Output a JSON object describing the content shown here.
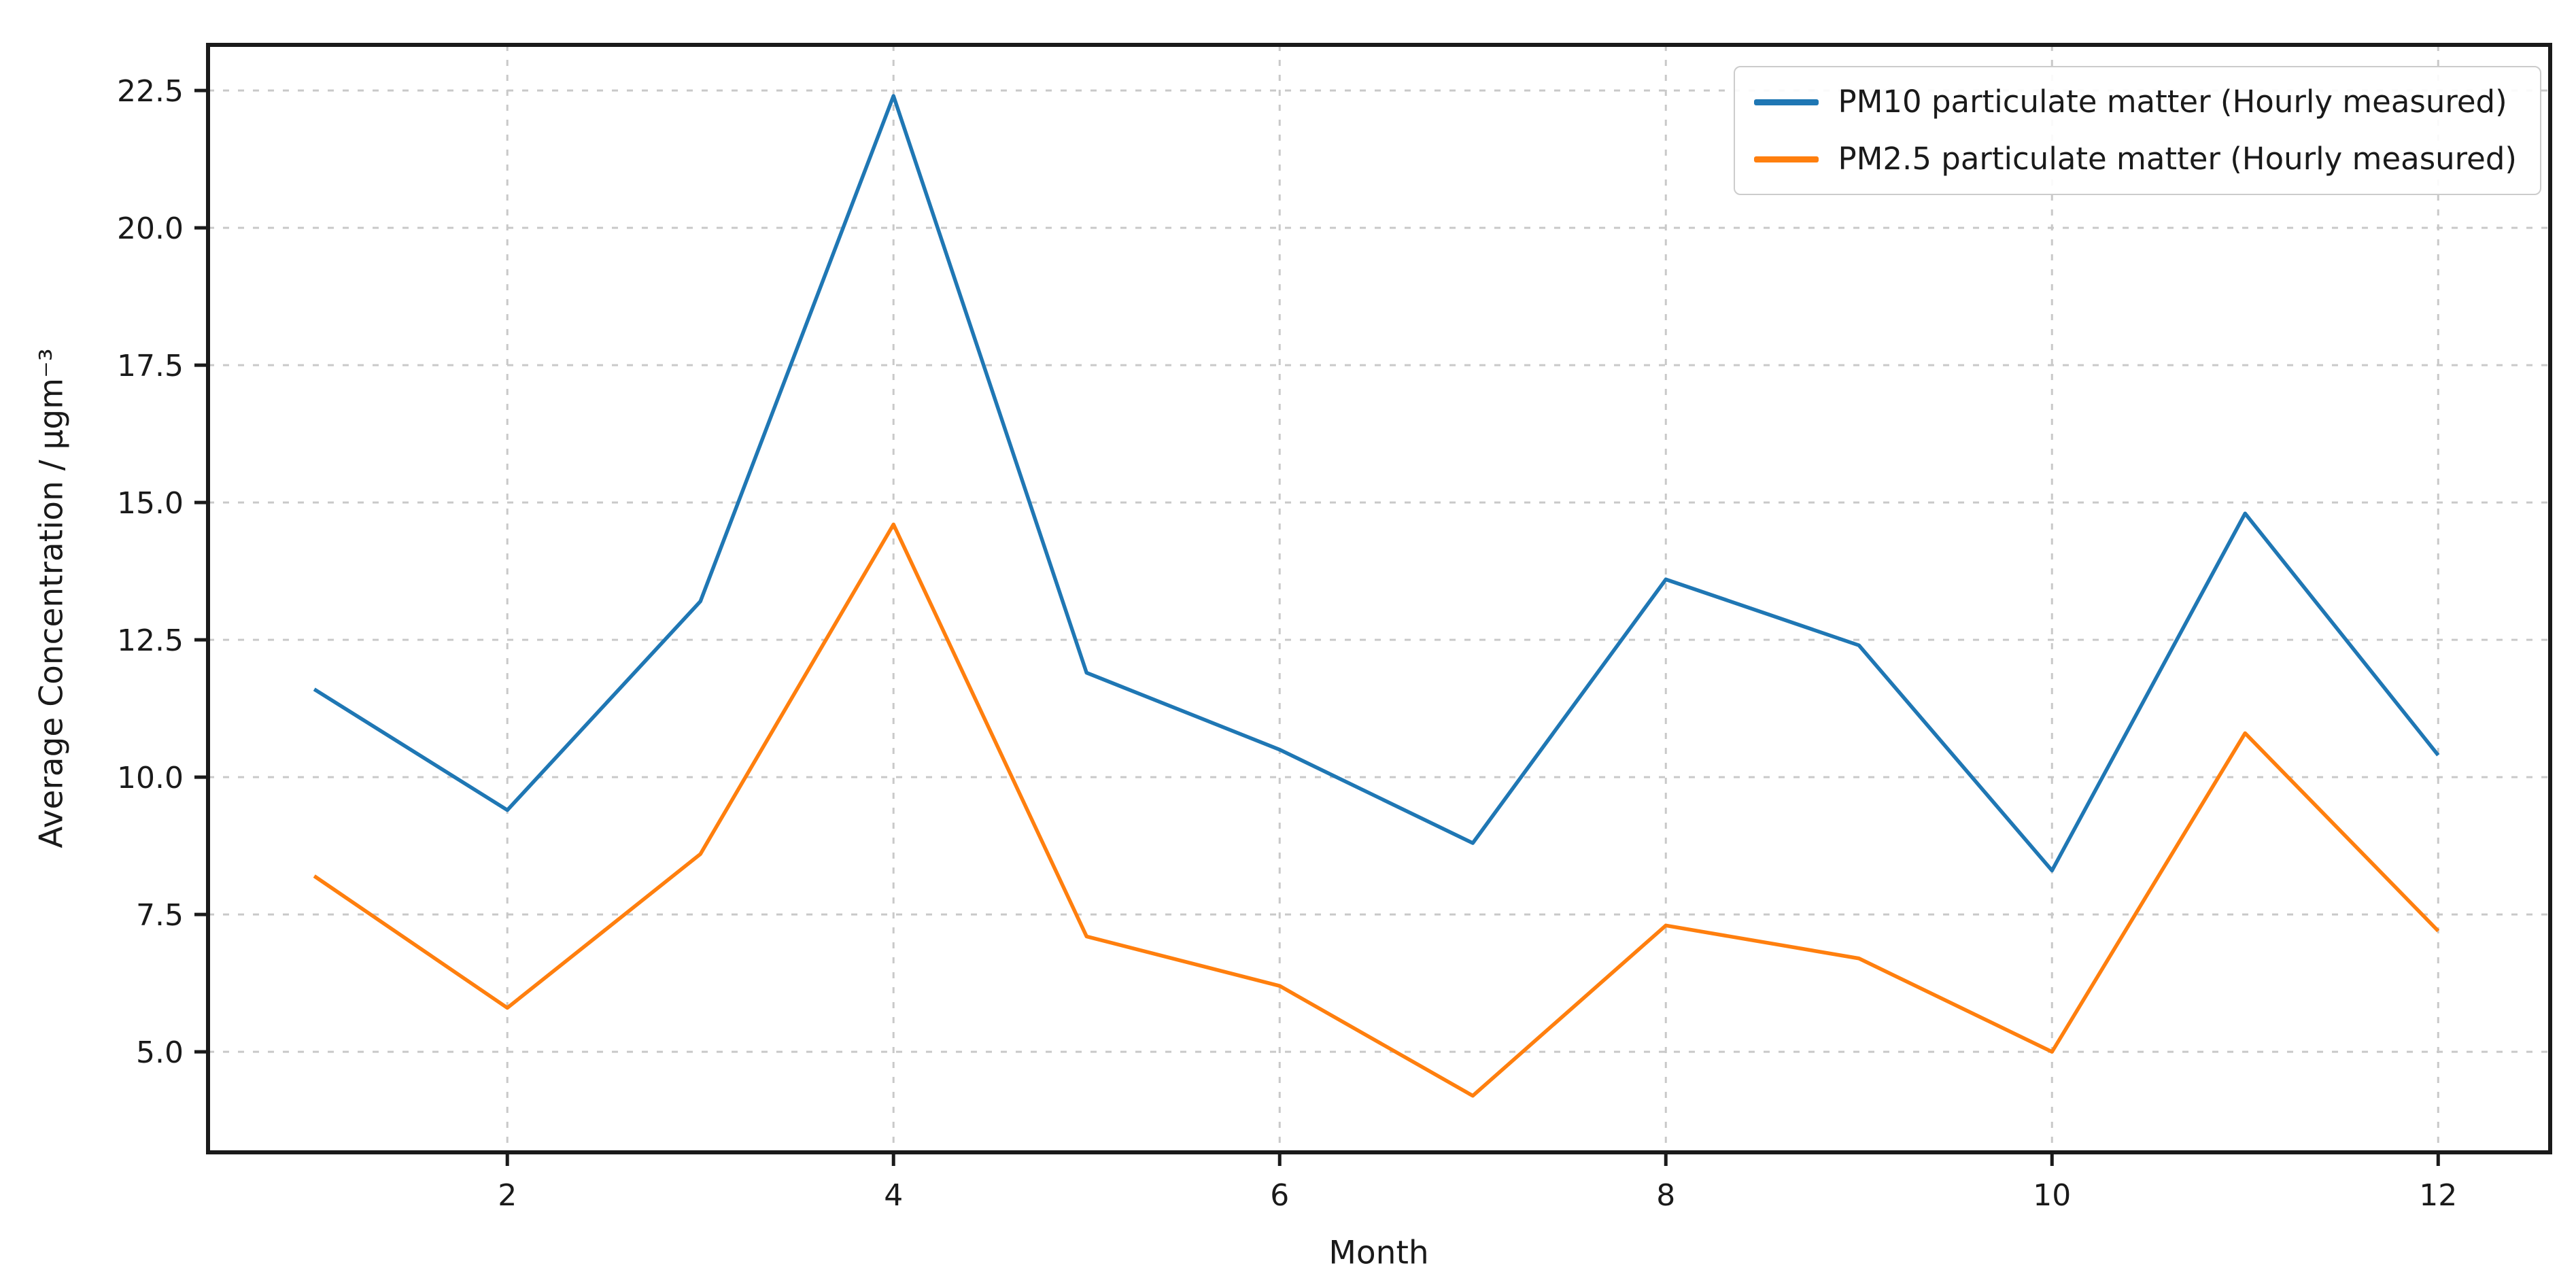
{
  "chart_data": {
    "type": "line",
    "title": "",
    "xlabel": "Month",
    "ylabel": "Average Concentration / µgm⁻³",
    "x": [
      1,
      2,
      3,
      4,
      5,
      6,
      7,
      8,
      9,
      10,
      11,
      12
    ],
    "series": [
      {
        "name": "PM10 particulate matter (Hourly measured)",
        "color": "#1f77b4",
        "values": [
          11.6,
          9.4,
          13.2,
          22.4,
          11.9,
          10.5,
          8.8,
          13.6,
          12.4,
          8.3,
          14.8,
          10.4
        ]
      },
      {
        "name": "PM2.5 particulate matter (Hourly measured)",
        "color": "#ff7f0e",
        "values": [
          8.2,
          5.8,
          8.6,
          14.6,
          7.1,
          6.2,
          4.2,
          7.3,
          6.7,
          5.0,
          10.8,
          7.2
        ]
      }
    ],
    "xticks": [
      "2",
      "4",
      "6",
      "8",
      "10",
      "12"
    ],
    "yticks": [
      "5.0",
      "7.5",
      "10.0",
      "12.5",
      "15.0",
      "17.5",
      "20.0",
      "22.5"
    ],
    "xlim": [
      0.45,
      12.58
    ],
    "ylim": [
      3.17,
      23.33
    ],
    "grid": true,
    "grid_color": "#c9c9c9",
    "axis_color": "#1a1a1a",
    "legend_position": "upper right"
  }
}
